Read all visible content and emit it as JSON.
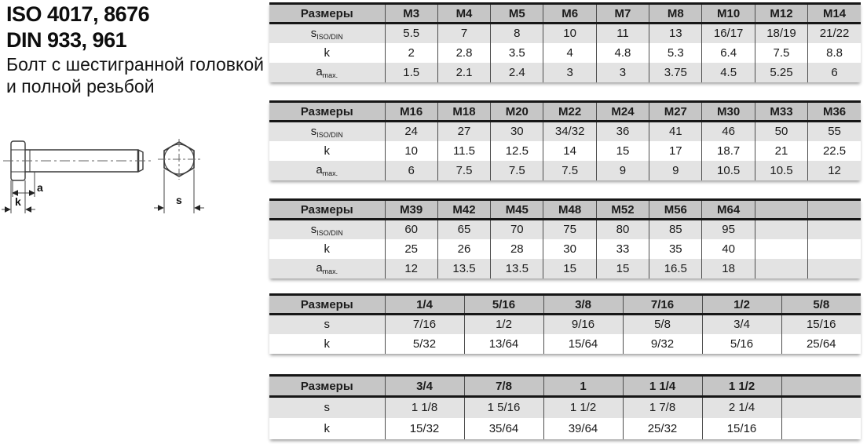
{
  "title": {
    "line1": "ISO 4017, 8676",
    "line2": "DIN 933, 961",
    "line3": "Болт с шестигранной головкой",
    "line4": "и полной резьбой"
  },
  "drawing": {
    "dim_a": "a",
    "dim_k": "k",
    "dim_s": "s"
  },
  "colors": {
    "header_bg": "#c6c6c6",
    "row_alt_bg": "#e3e3e3",
    "row_bg": "#ffffff",
    "border_dark": "#161616",
    "grid_line": "#4d4d4d"
  },
  "tables": [
    {
      "header": [
        "Размеры",
        "M3",
        "M4",
        "M5",
        "M6",
        "M7",
        "M8",
        "M10",
        "M12",
        "M14"
      ],
      "rows": [
        {
          "label": "s",
          "sub": "ISO/DIN",
          "shaded": true,
          "values": [
            "5.5",
            "7",
            "8",
            "10",
            "11",
            "13",
            "16/17",
            "18/19",
            "21/22"
          ]
        },
        {
          "label": "k",
          "sub": "",
          "shaded": false,
          "values": [
            "2",
            "2.8",
            "3.5",
            "4",
            "4.8",
            "5.3",
            "6.4",
            "7.5",
            "8.8"
          ]
        },
        {
          "label": "a",
          "sub": "max.",
          "shaded": true,
          "values": [
            "1.5",
            "2.1",
            "2.4",
            "3",
            "3",
            "3.75",
            "4.5",
            "5.25",
            "6"
          ]
        }
      ]
    },
    {
      "header": [
        "Размеры",
        "M16",
        "M18",
        "M20",
        "M22",
        "M24",
        "M27",
        "M30",
        "M33",
        "M36"
      ],
      "rows": [
        {
          "label": "s",
          "sub": "ISO/DIN",
          "shaded": true,
          "values": [
            "24",
            "27",
            "30",
            "34/32",
            "36",
            "41",
            "46",
            "50",
            "55"
          ]
        },
        {
          "label": "k",
          "sub": "",
          "shaded": false,
          "values": [
            "10",
            "11.5",
            "12.5",
            "14",
            "15",
            "17",
            "18.7",
            "21",
            "22.5"
          ]
        },
        {
          "label": "a",
          "sub": "max.",
          "shaded": true,
          "values": [
            "6",
            "7.5",
            "7.5",
            "7.5",
            "9",
            "9",
            "10.5",
            "10.5",
            "12"
          ]
        }
      ]
    },
    {
      "header": [
        "Размеры",
        "M39",
        "M42",
        "M45",
        "M48",
        "M52",
        "M56",
        "M64",
        "",
        ""
      ],
      "rows": [
        {
          "label": "s",
          "sub": "ISO/DIN",
          "shaded": true,
          "values": [
            "60",
            "65",
            "70",
            "75",
            "80",
            "85",
            "95",
            "",
            ""
          ]
        },
        {
          "label": "k",
          "sub": "",
          "shaded": false,
          "values": [
            "25",
            "26",
            "28",
            "30",
            "33",
            "35",
            "40",
            "",
            ""
          ]
        },
        {
          "label": "a",
          "sub": "max.",
          "shaded": true,
          "values": [
            "12",
            "13.5",
            "13.5",
            "15",
            "15",
            "16.5",
            "18",
            "",
            ""
          ]
        }
      ]
    },
    {
      "header": [
        "Размеры",
        "1/4",
        "5/16",
        "3/8",
        "7/16",
        "1/2",
        "5/8"
      ],
      "rows": [
        {
          "label": "s",
          "sub": "",
          "shaded": true,
          "values": [
            "7/16",
            "1/2",
            "9/16",
            "5/8",
            "3/4",
            "15/16"
          ]
        },
        {
          "label": "k",
          "sub": "",
          "shaded": false,
          "values": [
            "5/32",
            "13/64",
            "15/64",
            "9/32",
            "5/16",
            "25/64"
          ]
        }
      ]
    },
    {
      "header": [
        "Размеры",
        "3/4",
        "7/8",
        "1",
        "1 1/4",
        "1 1/2",
        ""
      ],
      "rows": [
        {
          "label": "s",
          "sub": "",
          "shaded": true,
          "values": [
            "1 1/8",
            "1 5/16",
            "1 1/2",
            "1 7/8",
            "2 1/4",
            ""
          ]
        },
        {
          "label": "k",
          "sub": "",
          "shaded": false,
          "values": [
            "15/32",
            "35/64",
            "39/64",
            "25/32",
            "15/16",
            ""
          ]
        }
      ]
    }
  ]
}
